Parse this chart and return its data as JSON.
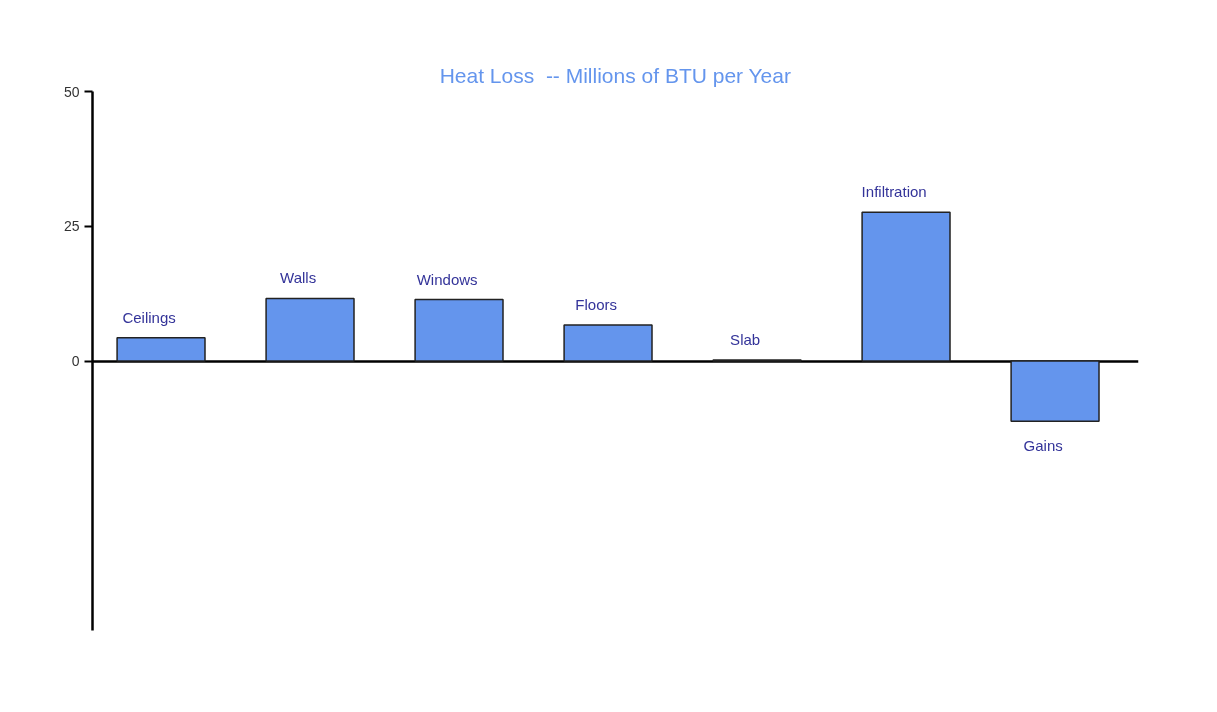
{
  "chart_data": {
    "type": "bar",
    "title": "Heat Loss  -- Millions of BTU per Year",
    "categories": [
      "Ceilings",
      "Walls",
      "Windows",
      "Floors",
      "Slab",
      "Infiltration",
      "Gains"
    ],
    "values": [
      4.3,
      11.6,
      11.4,
      6.7,
      0.2,
      27.6,
      -11.2
    ],
    "color": "#6495ed",
    "ylim": [
      -50,
      50
    ],
    "yticks": [
      0,
      25,
      50
    ]
  }
}
